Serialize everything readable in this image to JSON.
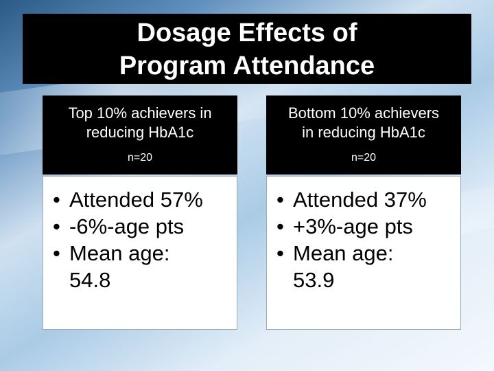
{
  "slide": {
    "title_line1": "Dosage Effects of",
    "title_line2": "Program Attendance"
  },
  "left": {
    "heading_line1": "Top 10% achievers in",
    "heading_line2": "reducing HbA1c",
    "n": "n=20",
    "bullets": [
      "Attended 57%",
      "-6%-age pts",
      "Mean age:",
      "54.8"
    ]
  },
  "right": {
    "heading_line1": "Bottom 10% achievers",
    "heading_line2": "in reducing HbA1c",
    "n": "n=20",
    "bullets": [
      "Attended 37%",
      "+3%-age pts",
      "Mean age:",
      "53.9"
    ]
  },
  "bullet_glyph": "•"
}
